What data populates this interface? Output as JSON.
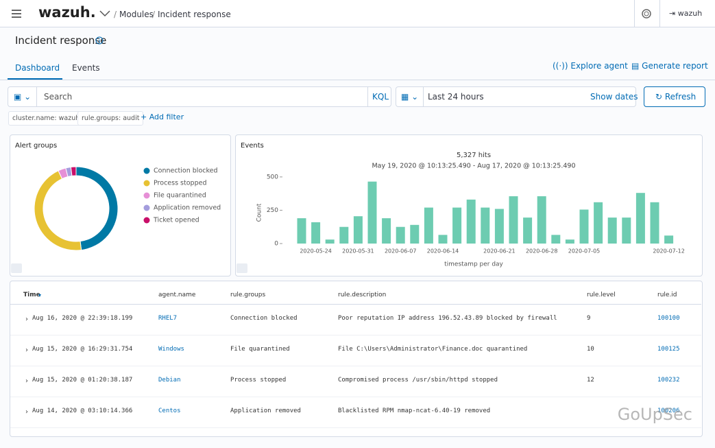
{
  "header": {
    "logo": "wazuh.",
    "breadcrumbs": [
      "Modules",
      "Incident response"
    ],
    "user": "wazuh"
  },
  "page": {
    "title": "Incident response",
    "tabs": [
      "Dashboard",
      "Events"
    ],
    "actions": [
      "Explore agent",
      "Generate report"
    ]
  },
  "query_bar": {
    "search": "Search",
    "language": "KQL",
    "time_range": "Last 24 hours",
    "show_dates": "Show dates",
    "refresh": "Refresh",
    "filters": [
      "cluster.name: wazuh",
      "rule.groups: audit"
    ],
    "add_filter": "+ Add filter"
  },
  "chart_data": [
    {
      "type": "pie",
      "title": "Alert groups",
      "categories": [
        "Connection blocked",
        "Process stopped",
        "File quarantined",
        "Application removed",
        "Ticket opened"
      ],
      "values": [
        48,
        45,
        3,
        2,
        2
      ],
      "colors": [
        "#0079a5",
        "#e7c233",
        "#e68fd6",
        "#a49ddd",
        "#c90f69"
      ]
    },
    {
      "type": "bar",
      "title": "Events",
      "subtitle": "5,327 hits",
      "date_range": "May 19, 2020 @ 10:13:25.490 - Aug 17, 2020 @ 10:13:25.490",
      "ylabel": "Count",
      "xlabel": "timestamp per day",
      "color": "#6dccb1",
      "categories": [
        null,
        "2020-05-24",
        null,
        null,
        "2020-05-31",
        null,
        null,
        "2020-06-07",
        null,
        null,
        "2020-06-14",
        null,
        null,
        null,
        "2020-06-21",
        null,
        null,
        "2020-06-28",
        null,
        null,
        "2020-07-05",
        null,
        null,
        null,
        null,
        null,
        "2020-07-12"
      ],
      "values": [
        190,
        160,
        30,
        125,
        205,
        465,
        190,
        125,
        140,
        270,
        65,
        270,
        330,
        270,
        260,
        355,
        195,
        355,
        65,
        30,
        255,
        310,
        195,
        195,
        380,
        310,
        60
      ],
      "ylim": [
        0,
        520
      ],
      "yticks": [
        0,
        250,
        500
      ]
    }
  ],
  "table": {
    "columns": [
      "Time",
      "agent.name",
      "rule.groups",
      "rule.description",
      "rule.level",
      "rule.id"
    ],
    "rows": [
      [
        "Aug 16, 2020 @ 22:39:18.199",
        "RHEL7",
        "Connection blocked",
        "Poor reputation IP address 196.52.43.89 blocked by firewall",
        "9",
        "100100"
      ],
      [
        "Aug 15, 2020 @ 16:29:31.754",
        "Windows",
        "File quarantined",
        "File C:\\Users\\Administrator\\Finance.doc quarantined",
        "10",
        "100125"
      ],
      [
        "Aug 15, 2020 @ 01:20:38.187",
        "Debian",
        "Process stopped",
        "Compromised process /usr/sbin/httpd stopped",
        "12",
        "100232"
      ],
      [
        "Aug 14, 2020 @ 03:10:14.366",
        "Centos",
        "Application removed",
        "Blacklisted RPM nmap-ncat-6.40-19 removed",
        "",
        "100206"
      ]
    ]
  },
  "watermark": "GoUpSec"
}
